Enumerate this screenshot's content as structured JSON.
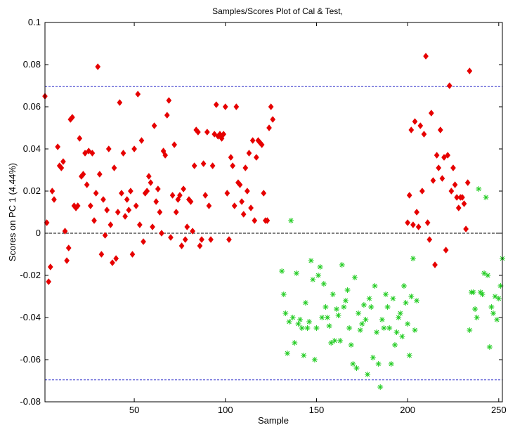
{
  "chart_data": {
    "type": "scatter",
    "title": "Samples/Scores Plot of Cal & Test,",
    "xlabel": "Sample",
    "ylabel": "Scores on PC 1 (4.44%)",
    "xlim": [
      1,
      252
    ],
    "ylim": [
      -0.08,
      0.1
    ],
    "xticks": [
      50,
      100,
      150,
      200,
      250
    ],
    "xtick_labels": [
      "50",
      "100",
      "150",
      "200",
      "250"
    ],
    "yticks": [
      -0.08,
      -0.06,
      -0.04,
      -0.02,
      0,
      0.02,
      0.04,
      0.06,
      0.08,
      0.1
    ],
    "ytick_labels": [
      "-0.08",
      "-0.06",
      "-0.04",
      "-0.02",
      "0",
      "0.02",
      "0.04",
      "0.06",
      "0.08",
      "0.1"
    ],
    "grid": false,
    "reference_lines": [
      {
        "y": 0.0696,
        "color": "#3333cc",
        "style": "dashed"
      },
      {
        "y": -0.0696,
        "color": "#3333cc",
        "style": "dashed"
      },
      {
        "y": 0,
        "color": "#000000",
        "style": "dashed"
      }
    ],
    "series": [
      {
        "marker": "diamond",
        "color": "#e60000",
        "points": [
          [
            1,
            0.065
          ],
          [
            2,
            0.005
          ],
          [
            3,
            -0.023
          ],
          [
            4,
            -0.016
          ],
          [
            5,
            0.02
          ],
          [
            6,
            0.016
          ],
          [
            8,
            0.041
          ],
          [
            9,
            0.032
          ],
          [
            10,
            0.031
          ],
          [
            11,
            0.034
          ],
          [
            12,
            0.001
          ],
          [
            13,
            -0.013
          ],
          [
            14,
            -0.007
          ],
          [
            15,
            0.054
          ],
          [
            16,
            0.055
          ],
          [
            17,
            0.013
          ],
          [
            18,
            0.012
          ],
          [
            19,
            0.013
          ],
          [
            20,
            0.045
          ],
          [
            21,
            0.027
          ],
          [
            22,
            0.028
          ],
          [
            23,
            0.038
          ],
          [
            24,
            0.023
          ],
          [
            25,
            0.039
          ],
          [
            26,
            0.013
          ],
          [
            27,
            0.038
          ],
          [
            28,
            0.006
          ],
          [
            29,
            0.019
          ],
          [
            30,
            0.079
          ],
          [
            31,
            0.028
          ],
          [
            32,
            -0.01
          ],
          [
            33,
            0.016
          ],
          [
            34,
            -0.001
          ],
          [
            35,
            0.011
          ],
          [
            36,
            0.04
          ],
          [
            37,
            0.004
          ],
          [
            38,
            -0.014
          ],
          [
            39,
            0.031
          ],
          [
            40,
            -0.012
          ],
          [
            41,
            0.01
          ],
          [
            42,
            0.062
          ],
          [
            43,
            0.019
          ],
          [
            44,
            0.038
          ],
          [
            45,
            0.008
          ],
          [
            46,
            0.016
          ],
          [
            47,
            0.011
          ],
          [
            48,
            0.02
          ],
          [
            49,
            -0.01
          ],
          [
            50,
            0.04
          ],
          [
            51,
            0.013
          ],
          [
            52,
            0.066
          ],
          [
            53,
            0.004
          ],
          [
            54,
            0.044
          ],
          [
            55,
            -0.004
          ],
          [
            56,
            0.019
          ],
          [
            57,
            0.02
          ],
          [
            58,
            0.027
          ],
          [
            59,
            0.024
          ],
          [
            60,
            0.003
          ],
          [
            61,
            0.051
          ],
          [
            62,
            0.015
          ],
          [
            63,
            0.021
          ],
          [
            64,
            0.01
          ],
          [
            65,
            0.0
          ],
          [
            66,
            0.039
          ],
          [
            67,
            0.037
          ],
          [
            68,
            0.056
          ],
          [
            69,
            0.063
          ],
          [
            70,
            -0.002
          ],
          [
            71,
            0.018
          ],
          [
            72,
            0.042
          ],
          [
            73,
            0.01
          ],
          [
            74,
            0.016
          ],
          [
            75,
            0.018
          ],
          [
            76,
            -0.006
          ],
          [
            77,
            0.021
          ],
          [
            78,
            -0.003
          ],
          [
            79,
            0.003
          ],
          [
            80,
            0.016
          ],
          [
            81,
            0.015
          ],
          [
            82,
            0.001
          ],
          [
            83,
            0.032
          ],
          [
            84,
            0.049
          ],
          [
            85,
            0.048
          ],
          [
            86,
            -0.006
          ],
          [
            87,
            -0.003
          ],
          [
            88,
            0.033
          ],
          [
            89,
            0.018
          ],
          [
            90,
            0.048
          ],
          [
            91,
            0.013
          ],
          [
            92,
            -0.003
          ],
          [
            93,
            0.032
          ],
          [
            94,
            0.047
          ],
          [
            95,
            0.061
          ],
          [
            96,
            0.046
          ],
          [
            97,
            0.047
          ],
          [
            98,
            0.045
          ],
          [
            99,
            0.047
          ],
          [
            100,
            0.06
          ],
          [
            101,
            0.019
          ],
          [
            102,
            -0.003
          ],
          [
            103,
            0.036
          ],
          [
            104,
            0.032
          ],
          [
            105,
            0.013
          ],
          [
            106,
            0.06
          ],
          [
            107,
            0.024
          ],
          [
            108,
            0.023
          ],
          [
            109,
            0.015
          ],
          [
            110,
            0.009
          ],
          [
            111,
            0.031
          ],
          [
            112,
            0.02
          ],
          [
            113,
            0.038
          ],
          [
            114,
            0.012
          ],
          [
            115,
            0.044
          ],
          [
            116,
            0.006
          ],
          [
            117,
            0.036
          ],
          [
            118,
            0.044
          ],
          [
            119,
            0.043
          ],
          [
            120,
            0.042
          ],
          [
            121,
            0.019
          ],
          [
            122,
            0.006
          ],
          [
            123,
            0.006
          ],
          [
            124,
            0.05
          ],
          [
            125,
            0.06
          ],
          [
            126,
            0.054
          ],
          [
            200,
            0.005
          ],
          [
            201,
            0.018
          ],
          [
            202,
            0.049
          ],
          [
            203,
            0.004
          ],
          [
            204,
            0.053
          ],
          [
            205,
            0.01
          ],
          [
            206,
            0.003
          ],
          [
            207,
            0.051
          ],
          [
            208,
            0.02
          ],
          [
            209,
            0.047
          ],
          [
            210,
            0.084
          ],
          [
            211,
            0.005
          ],
          [
            212,
            -0.003
          ],
          [
            213,
            0.057
          ],
          [
            214,
            0.025
          ],
          [
            215,
            -0.015
          ],
          [
            216,
            0.037
          ],
          [
            217,
            0.031
          ],
          [
            218,
            0.049
          ],
          [
            219,
            0.026
          ],
          [
            220,
            0.036
          ],
          [
            221,
            -0.008
          ],
          [
            222,
            0.037
          ],
          [
            223,
            0.07
          ],
          [
            224,
            0.02
          ],
          [
            225,
            0.031
          ],
          [
            226,
            0.023
          ],
          [
            227,
            0.017
          ],
          [
            228,
            0.012
          ],
          [
            229,
            0.017
          ],
          [
            230,
            0.017
          ],
          [
            231,
            0.014
          ],
          [
            232,
            0.002
          ],
          [
            233,
            0.024
          ],
          [
            234,
            0.077
          ]
        ]
      },
      {
        "marker": "asterisk",
        "color": "#22cc22",
        "points": [
          [
            131,
            -0.018
          ],
          [
            132,
            -0.029
          ],
          [
            133,
            -0.038
          ],
          [
            134,
            -0.057
          ],
          [
            135,
            -0.042
          ],
          [
            136,
            0.006
          ],
          [
            137,
            -0.04
          ],
          [
            138,
            -0.052
          ],
          [
            139,
            -0.019
          ],
          [
            140,
            -0.043
          ],
          [
            141,
            -0.041
          ],
          [
            142,
            -0.045
          ],
          [
            143,
            -0.058
          ],
          [
            144,
            -0.033
          ],
          [
            145,
            -0.045
          ],
          [
            146,
            -0.042
          ],
          [
            147,
            -0.013
          ],
          [
            148,
            -0.022
          ],
          [
            149,
            -0.06
          ],
          [
            150,
            -0.045
          ],
          [
            151,
            -0.02
          ],
          [
            152,
            -0.016
          ],
          [
            153,
            -0.04
          ],
          [
            154,
            -0.024
          ],
          [
            155,
            -0.035
          ],
          [
            156,
            -0.04
          ],
          [
            157,
            -0.044
          ],
          [
            158,
            -0.052
          ],
          [
            159,
            -0.029
          ],
          [
            160,
            -0.051
          ],
          [
            161,
            -0.036
          ],
          [
            162,
            -0.039
          ],
          [
            163,
            -0.051
          ],
          [
            164,
            -0.015
          ],
          [
            165,
            -0.035
          ],
          [
            166,
            -0.032
          ],
          [
            167,
            -0.027
          ],
          [
            168,
            -0.045
          ],
          [
            169,
            -0.053
          ],
          [
            170,
            -0.062
          ],
          [
            171,
            -0.021
          ],
          [
            172,
            -0.064
          ],
          [
            173,
            -0.038
          ],
          [
            174,
            -0.046
          ],
          [
            175,
            -0.043
          ],
          [
            176,
            -0.034
          ],
          [
            177,
            -0.041
          ],
          [
            178,
            -0.067
          ],
          [
            179,
            -0.031
          ],
          [
            180,
            -0.035
          ],
          [
            181,
            -0.059
          ],
          [
            182,
            -0.025
          ],
          [
            183,
            -0.047
          ],
          [
            184,
            -0.062
          ],
          [
            185,
            -0.073
          ],
          [
            186,
            -0.041
          ],
          [
            187,
            -0.045
          ],
          [
            188,
            -0.029
          ],
          [
            189,
            -0.035
          ],
          [
            190,
            -0.045
          ],
          [
            191,
            -0.062
          ],
          [
            192,
            -0.031
          ],
          [
            193,
            -0.053
          ],
          [
            194,
            -0.047
          ],
          [
            195,
            -0.04
          ],
          [
            196,
            -0.038
          ],
          [
            197,
            -0.049
          ],
          [
            198,
            -0.025
          ],
          [
            199,
            -0.033
          ],
          [
            200,
            -0.043
          ],
          [
            201,
            -0.058
          ],
          [
            202,
            -0.03
          ],
          [
            203,
            -0.012
          ],
          [
            204,
            -0.046
          ],
          [
            205,
            -0.032
          ],
          [
            234,
            -0.046
          ],
          [
            235,
            -0.028
          ],
          [
            236,
            -0.028
          ],
          [
            237,
            -0.036
          ],
          [
            238,
            -0.04
          ],
          [
            239,
            0.021
          ],
          [
            240,
            -0.028
          ],
          [
            241,
            -0.029
          ],
          [
            242,
            -0.019
          ],
          [
            243,
            0.017
          ],
          [
            244,
            -0.02
          ],
          [
            245,
            -0.054
          ],
          [
            246,
            -0.035
          ],
          [
            247,
            -0.038
          ],
          [
            248,
            -0.03
          ],
          [
            249,
            -0.041
          ],
          [
            250,
            -0.031
          ],
          [
            251,
            -0.025
          ],
          [
            252,
            -0.012
          ]
        ]
      }
    ]
  }
}
